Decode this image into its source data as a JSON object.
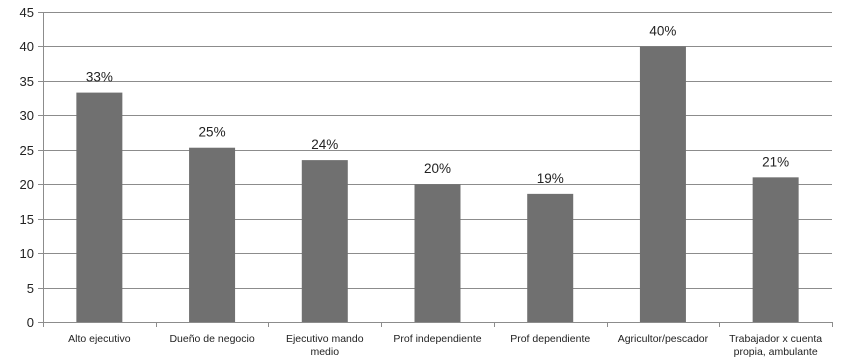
{
  "chart_data": {
    "type": "bar",
    "categories": [
      [
        "Alto ejecutivo"
      ],
      [
        "Dueño de negocio"
      ],
      [
        "Ejecutivo mando",
        "medio"
      ],
      [
        "Prof independiente"
      ],
      [
        "Prof dependiente"
      ],
      [
        "Agricultor/pescador"
      ],
      [
        "Trabajador x cuenta",
        "propia, ambulante"
      ]
    ],
    "values": [
      33.3,
      25.3,
      23.5,
      20,
      18.6,
      40,
      21
    ],
    "data_labels": [
      "33%",
      "25%",
      "24%",
      "20%",
      "19%",
      "40%",
      "21%"
    ],
    "yticks": [
      "0",
      "5",
      "10",
      "15",
      "20",
      "25",
      "30",
      "35",
      "40",
      "45"
    ],
    "ylim": [
      0,
      45
    ],
    "grid": true,
    "bar_color": "#707070",
    "title": "",
    "xlabel": "",
    "ylabel": ""
  }
}
